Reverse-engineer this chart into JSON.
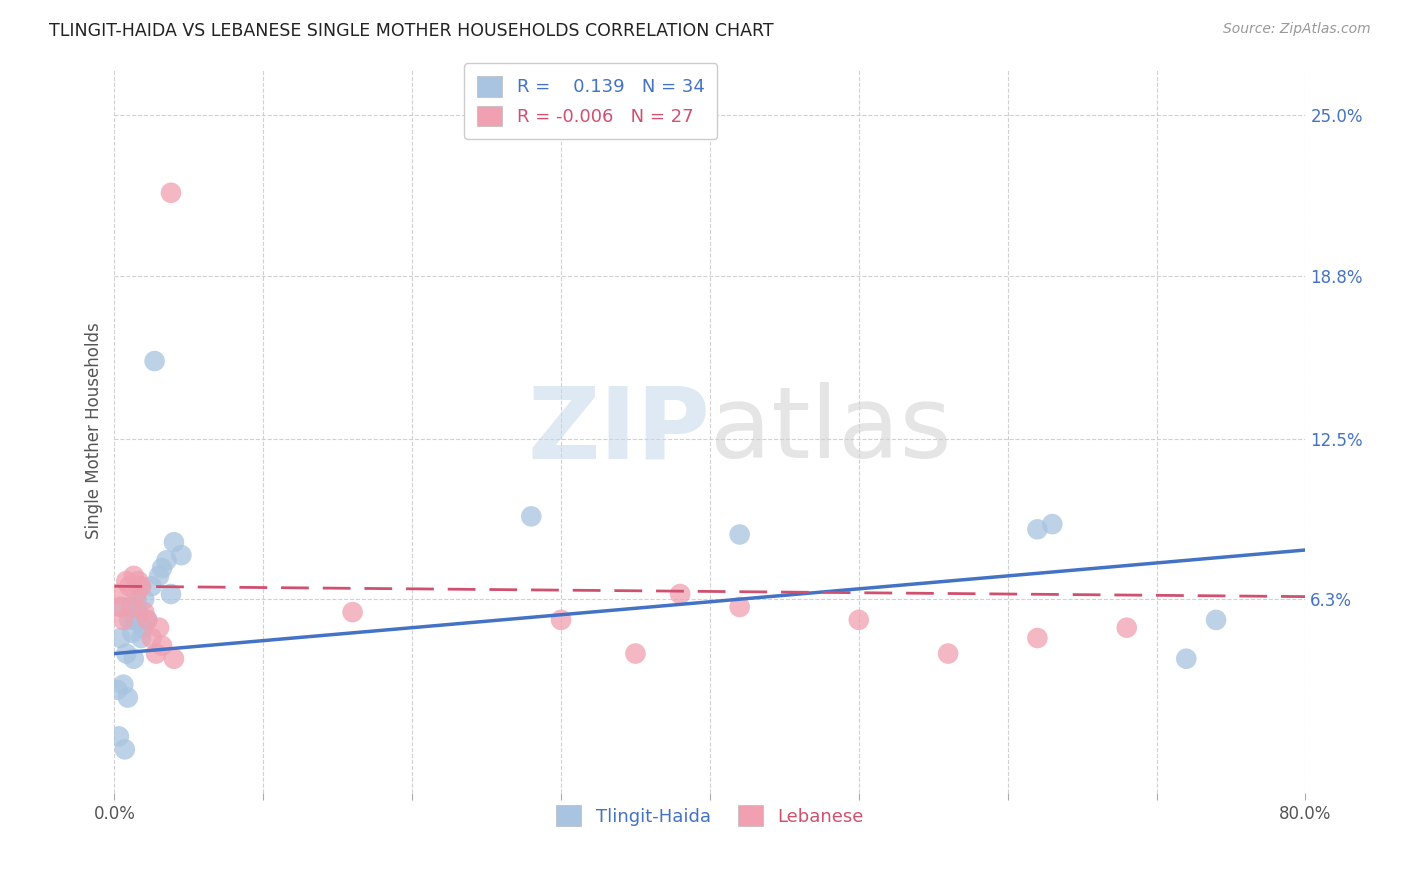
{
  "title": "TLINGIT-HAIDA VS LEBANESE SINGLE MOTHER HOUSEHOLDS CORRELATION CHART",
  "source": "Source: ZipAtlas.com",
  "ylabel": "Single Mother Households",
  "xlim": [
    0.0,
    0.8
  ],
  "ylim": [
    -0.012,
    0.268
  ],
  "yticks": [
    0.063,
    0.125,
    0.188,
    0.25
  ],
  "ytick_labels": [
    "6.3%",
    "12.5%",
    "18.8%",
    "25.0%"
  ],
  "xticks": [
    0.0,
    0.1,
    0.2,
    0.3,
    0.4,
    0.5,
    0.6,
    0.7,
    0.8
  ],
  "xtick_labels": [
    "0.0%",
    "",
    "",
    "",
    "",
    "",
    "",
    "",
    "80.0%"
  ],
  "blue_r": 0.139,
  "blue_n": 34,
  "pink_r": -0.006,
  "pink_n": 27,
  "blue_color": "#a8c4e0",
  "pink_color": "#f0a0b0",
  "blue_line_color": "#4472c4",
  "pink_line_color": "#d05070",
  "tlingit_x": [
    0.002,
    0.003,
    0.004,
    0.005,
    0.006,
    0.007,
    0.008,
    0.009,
    0.01,
    0.011,
    0.012,
    0.013,
    0.014,
    0.015,
    0.016,
    0.017,
    0.018,
    0.019,
    0.02,
    0.022,
    0.025,
    0.027,
    0.03,
    0.032,
    0.035,
    0.038,
    0.04,
    0.045,
    0.28,
    0.42,
    0.62,
    0.63,
    0.72,
    0.74
  ],
  "tlingit_y": [
    0.028,
    0.01,
    0.048,
    0.06,
    0.03,
    0.005,
    0.042,
    0.025,
    0.055,
    0.06,
    0.05,
    0.04,
    0.055,
    0.062,
    0.058,
    0.068,
    0.048,
    0.052,
    0.063,
    0.055,
    0.068,
    0.155,
    0.072,
    0.075,
    0.078,
    0.065,
    0.085,
    0.08,
    0.095,
    0.088,
    0.09,
    0.092,
    0.04,
    0.055
  ],
  "lebanese_x": [
    0.002,
    0.004,
    0.006,
    0.008,
    0.01,
    0.012,
    0.013,
    0.015,
    0.016,
    0.018,
    0.02,
    0.022,
    0.025,
    0.028,
    0.03,
    0.032,
    0.038,
    0.04,
    0.16,
    0.3,
    0.35,
    0.38,
    0.42,
    0.5,
    0.56,
    0.62,
    0.68
  ],
  "lebanese_y": [
    0.065,
    0.06,
    0.055,
    0.07,
    0.068,
    0.06,
    0.072,
    0.065,
    0.07,
    0.068,
    0.058,
    0.055,
    0.048,
    0.042,
    0.052,
    0.045,
    0.22,
    0.04,
    0.058,
    0.055,
    0.042,
    0.065,
    0.06,
    0.055,
    0.042,
    0.048,
    0.052
  ],
  "watermark_zip": "ZIP",
  "watermark_atlas": "atlas",
  "background_color": "#ffffff",
  "grid_color": "#cccccc"
}
